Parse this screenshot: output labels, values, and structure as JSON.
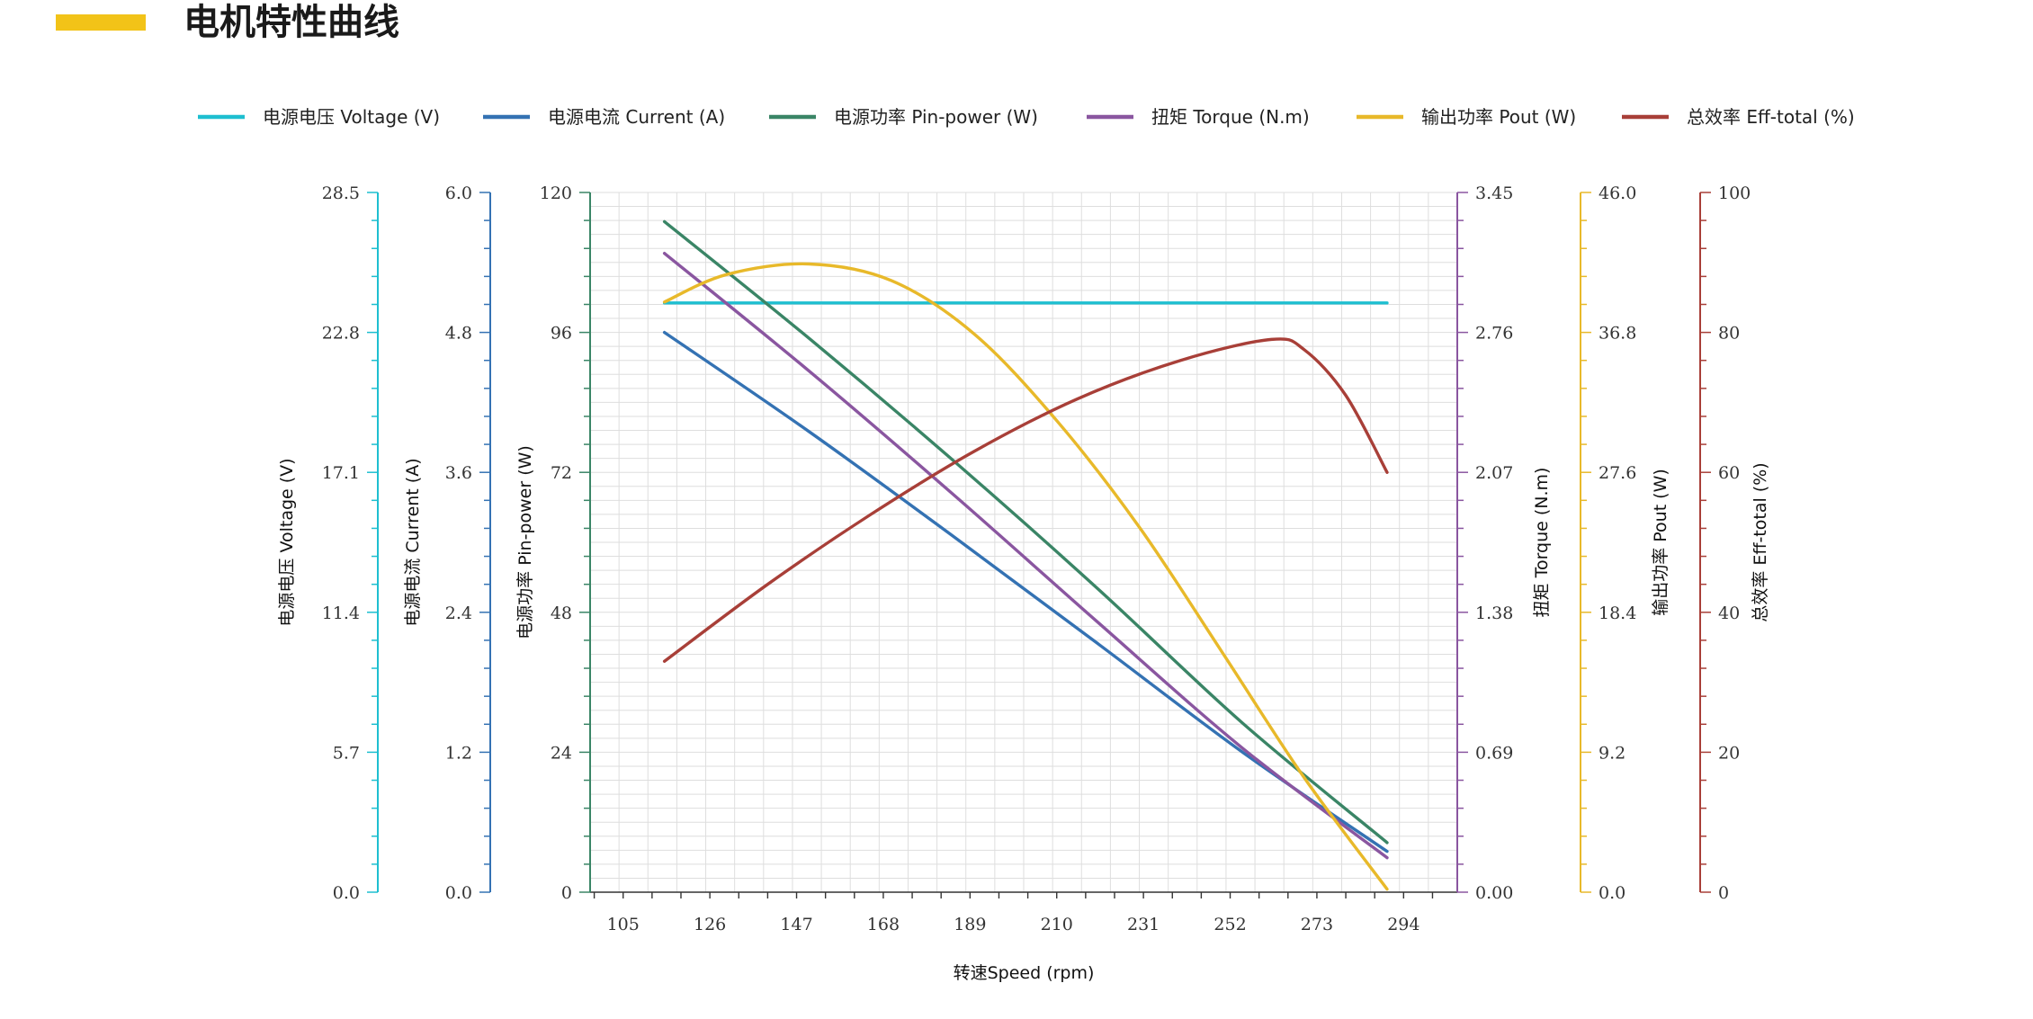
{
  "page": {
    "title": "电机特性曲线"
  },
  "colors": {
    "title_accent": "#f2c318",
    "grid": "#dedede",
    "voltage": "#1ebfd0",
    "current": "#3472b3",
    "pin_power": "#3a8566",
    "torque": "#8a56a0",
    "pout": "#e8b92a",
    "efficiency": "#a83f38"
  },
  "chart_data": {
    "type": "line",
    "xlabel": "转速Speed (rpm)",
    "xlim": [
      97,
      307
    ],
    "x_ticks": [
      105,
      126,
      147,
      168,
      189,
      210,
      231,
      252,
      273,
      294
    ],
    "grid": true,
    "legend_position": "top",
    "axes": [
      {
        "id": "voltage",
        "label": "电源电压 Voltage (V)",
        "side": "left",
        "range": [
          0,
          28.5
        ],
        "ticks": [
          "0.0",
          "5.7",
          "11.4",
          "17.1",
          "22.8",
          "28.5"
        ]
      },
      {
        "id": "current",
        "label": "电源电流 Current (A)",
        "side": "left",
        "range": [
          0,
          6.0
        ],
        "ticks": [
          "0.0",
          "1.2",
          "2.4",
          "3.6",
          "4.8",
          "6.0"
        ]
      },
      {
        "id": "pin_power",
        "label": "电源功率 Pin-power (W)",
        "side": "left",
        "range": [
          0,
          120
        ],
        "ticks": [
          "0",
          "24",
          "48",
          "72",
          "96",
          "120"
        ]
      },
      {
        "id": "torque",
        "label": "扭矩 Torque (N.m)",
        "side": "right",
        "range": [
          0,
          3.45
        ],
        "ticks": [
          "0.00",
          "0.69",
          "1.38",
          "2.07",
          "2.76",
          "3.45"
        ]
      },
      {
        "id": "pout",
        "label": "输出功率 Pout (W)",
        "side": "right",
        "range": [
          0,
          46.0
        ],
        "ticks": [
          "0.0",
          "9.2",
          "18.4",
          "27.6",
          "36.8",
          "46.0"
        ]
      },
      {
        "id": "efficiency",
        "label": "总效率 Eff-total (%)",
        "side": "right",
        "range": [
          0,
          100
        ],
        "ticks": [
          "0",
          "20",
          "40",
          "60",
          "80",
          "100"
        ]
      }
    ],
    "series": [
      {
        "name": "电源电压 Voltage (V)",
        "axis": "voltage",
        "x": [
          115,
          290
        ],
        "y": [
          24.0,
          24.0
        ]
      },
      {
        "name": "电源电流 Current (A)",
        "axis": "current",
        "x": [
          115,
          150,
          185,
          220,
          255,
          290
        ],
        "y": [
          4.8,
          3.95,
          3.05,
          2.13,
          1.2,
          0.35
        ]
      },
      {
        "name": "电源功率 Pin-power (W)",
        "axis": "pin_power",
        "x": [
          115,
          150,
          185,
          220,
          255,
          290
        ],
        "y": [
          115,
          95,
          74,
          52,
          29,
          8.5
        ]
      },
      {
        "name": "扭矩 Torque (N.m)",
        "axis": "torque",
        "x": [
          115,
          150,
          185,
          220,
          255,
          290
        ],
        "y": [
          3.15,
          2.57,
          1.96,
          1.33,
          0.71,
          0.17
        ]
      },
      {
        "name": "输出功率 Pout (W)",
        "axis": "pout",
        "x": [
          115,
          130,
          150,
          170,
          190,
          210,
          230,
          250,
          270,
          290
        ],
        "y": [
          38.8,
          40.6,
          41.3,
          40.2,
          36.7,
          31.0,
          24.0,
          15.8,
          7.5,
          0.2
        ]
      },
      {
        "name": "总效率 Eff-total (%)",
        "axis": "efficiency",
        "x": [
          115,
          140,
          165,
          190,
          215,
          240,
          262,
          270,
          280,
          290
        ],
        "y": [
          33,
          44,
          54,
          63,
          70.5,
          76,
          79,
          77.5,
          71,
          60
        ]
      }
    ]
  }
}
